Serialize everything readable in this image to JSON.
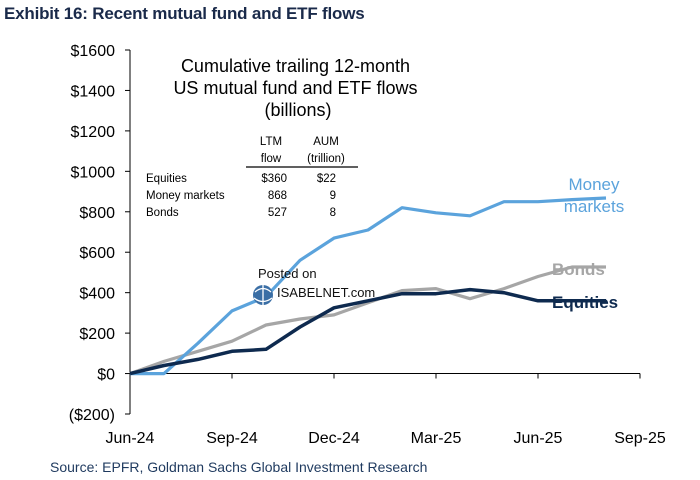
{
  "exhibit_title": "Exhibit 16: Recent mutual fund and ETF flows",
  "source": "Source: EPFR, Goldman Sachs Global Investment Research",
  "watermark": {
    "line1": "Posted on",
    "line2": "ISABELNET.com"
  },
  "colors": {
    "money_markets": "#5BA3DC",
    "bonds": "#A6A6A6",
    "equities": "#0E2A4F"
  },
  "chart_data": {
    "type": "line",
    "title": "Cumulative trailing 12-month\nUS  mutual fund and ETF flows\n(billions)",
    "ylim": [
      -200,
      1600
    ],
    "y_ticks": [
      -200,
      0,
      200,
      400,
      600,
      800,
      1000,
      1200,
      1400,
      1600
    ],
    "y_tick_labels": [
      "($200)",
      "$0",
      "$200",
      "$400",
      "$600",
      "$800",
      "$1000",
      "$1200",
      "$1400",
      "$1600"
    ],
    "x_ticks": [
      "Jun-24",
      "Sep-24",
      "Dec-24",
      "Mar-25",
      "Jun-25",
      "Sep-25"
    ],
    "x": [
      "2024-06",
      "2024-07",
      "2024-08",
      "2024-09",
      "2024-10",
      "2024-11",
      "2024-12",
      "2025-01",
      "2025-02",
      "2025-03",
      "2025-04",
      "2025-05",
      "2025-06",
      "2025-07",
      "2025-08"
    ],
    "series": [
      {
        "name": "Money markets",
        "key": "money_markets",
        "values": [
          0,
          0,
          150,
          310,
          380,
          560,
          670,
          710,
          820,
          795,
          780,
          850,
          850,
          860,
          868
        ]
      },
      {
        "name": "Bonds",
        "key": "bonds",
        "values": [
          0,
          60,
          110,
          160,
          240,
          270,
          290,
          350,
          410,
          420,
          370,
          420,
          480,
          527,
          527
        ]
      },
      {
        "name": "Equities",
        "key": "equities",
        "values": [
          0,
          40,
          70,
          110,
          120,
          230,
          325,
          360,
          395,
          395,
          415,
          400,
          360,
          360,
          360
        ]
      }
    ],
    "table": {
      "headers": [
        [
          "LTM",
          "flow"
        ],
        [
          "AUM",
          "(trillion)"
        ]
      ],
      "rows": [
        {
          "label": "Equities",
          "flow": "$360",
          "aum": "$22"
        },
        {
          "label": "Money markets",
          "flow": "868",
          "aum": "9"
        },
        {
          "label": "Bonds",
          "flow": "527",
          "aum": "8"
        }
      ]
    },
    "grid": false,
    "legend": "inline labels at line ends"
  }
}
